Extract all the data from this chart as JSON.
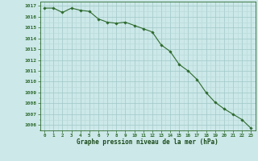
{
  "x": [
    0,
    1,
    2,
    3,
    4,
    5,
    6,
    7,
    8,
    9,
    10,
    11,
    12,
    13,
    14,
    15,
    16,
    17,
    18,
    19,
    20,
    21,
    22,
    23
  ],
  "y": [
    1016.8,
    1016.8,
    1016.4,
    1016.8,
    1016.6,
    1016.5,
    1015.8,
    1015.5,
    1015.4,
    1015.5,
    1015.2,
    1014.9,
    1014.6,
    1013.4,
    1012.8,
    1011.6,
    1011.0,
    1010.2,
    1009.0,
    1008.1,
    1007.5,
    1007.0,
    1006.5,
    1005.7
  ],
  "line_color": "#2d6a2d",
  "marker_color": "#2d6a2d",
  "bg_color": "#cce8e8",
  "xlabel": "Graphe pression niveau de la mer (hPa)",
  "xlabel_color": "#1a4a1a",
  "ylabel_ticks": [
    1006,
    1007,
    1008,
    1009,
    1010,
    1011,
    1012,
    1013,
    1014,
    1015,
    1016,
    1017
  ],
  "ylim": [
    1005.5,
    1017.4
  ],
  "xlim": [
    -0.5,
    23.5
  ],
  "tick_color": "#2d6a2d",
  "tick_label_color": "#2d6a2d",
  "minor_grid_color": "#b8d8d8",
  "major_grid_color": "#a0c8c8"
}
